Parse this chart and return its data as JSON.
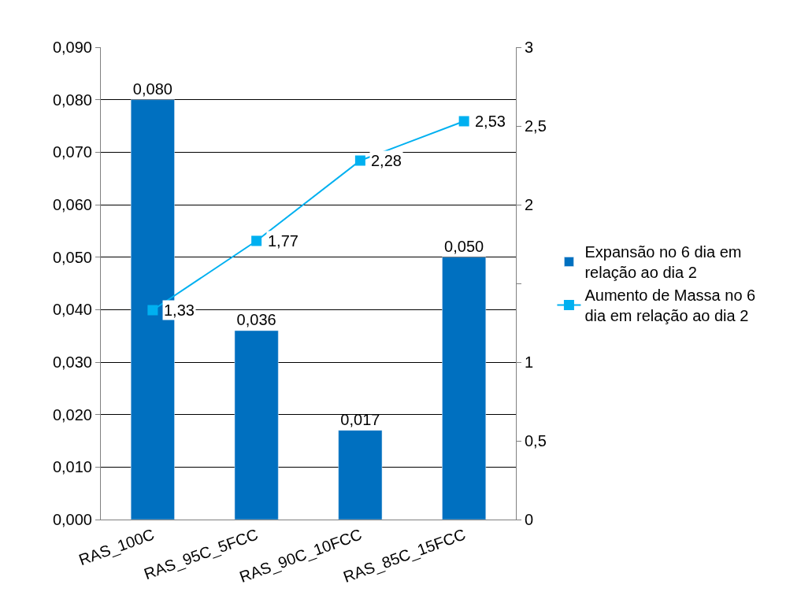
{
  "chart_data": {
    "type": "bar",
    "categories": [
      "RAS_100C",
      "RAS_95C_5FCC",
      "RAS_90C_10FCC",
      "RAS_85C_15FCC"
    ],
    "series": [
      {
        "name": "Expansão no 6 dia em relação ao dia 2",
        "color": "#0070c0",
        "values": [
          0.08,
          0.036,
          0.017,
          0.05
        ],
        "value_labels": [
          "0,080",
          "0,036",
          "0,017",
          "0,050"
        ]
      },
      {
        "name": "Aumento de Massa no 6 dia em relação ao dia 2",
        "type": "line",
        "axis": "y2",
        "color": "#00b0f0",
        "marker": "square",
        "values": [
          1.33,
          1.77,
          2.28,
          2.53
        ],
        "value_labels": [
          "1,33",
          "1,77",
          "2,28",
          "2,53"
        ]
      }
    ],
    "ylim": [
      0,
      0.09
    ],
    "yticks": [
      {
        "value": 0,
        "label": "0,000"
      },
      {
        "value": 0.01,
        "label": "0,010"
      },
      {
        "value": 0.02,
        "label": "0,020"
      },
      {
        "value": 0.03,
        "label": "0,030"
      },
      {
        "value": 0.04,
        "label": "0,040"
      },
      {
        "value": 0.05,
        "label": "0,050"
      },
      {
        "value": 0.06,
        "label": "0,060"
      },
      {
        "value": 0.07,
        "label": "0,070"
      },
      {
        "value": 0.08,
        "label": "0,080"
      },
      {
        "value": 0.09,
        "label": "0,090"
      }
    ],
    "y2lim": [
      0,
      3
    ],
    "y2ticks": [
      0,
      {
        "value": 0.5,
        "label": "0,5"
      },
      1,
      {
        "value": 1.5,
        "label": null
      },
      2,
      {
        "value": 2.5,
        "label": "2,5"
      },
      3
    ],
    "grid": "y",
    "legend": "right"
  }
}
